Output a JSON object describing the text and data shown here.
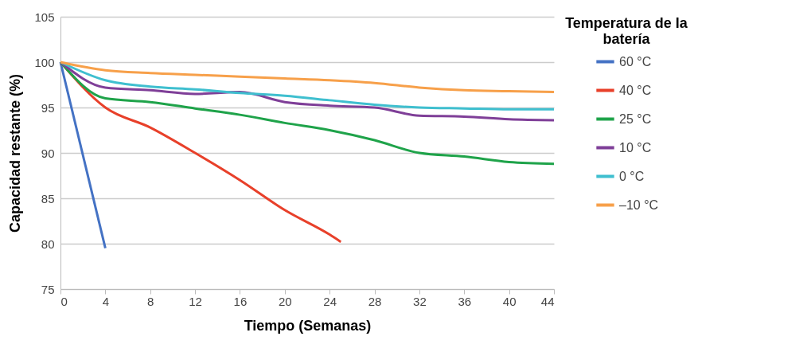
{
  "chart_data": {
    "type": "line",
    "xlabel": "Tiempo (Semanas)",
    "ylabel": "Capacidad restante (%)",
    "legend_title": "Temperatura de la batería",
    "legend": "right",
    "grid": "y",
    "xlim": [
      0,
      44
    ],
    "xticks": [
      0,
      4,
      8,
      12,
      16,
      20,
      24,
      28,
      32,
      36,
      40,
      44
    ],
    "ylim": [
      75,
      105
    ],
    "yticks": [
      75,
      80,
      85,
      90,
      95,
      100,
      105
    ],
    "series": [
      {
        "name": "60 °C",
        "color": "#4472c4",
        "x": [
          0,
          4
        ],
        "values": [
          100,
          79.5
        ]
      },
      {
        "name": "40 °C",
        "color": "#e8402a",
        "x": [
          0,
          4,
          8,
          12,
          16,
          20,
          24,
          25
        ],
        "values": [
          100,
          95,
          92.8,
          90,
          87,
          83.7,
          81,
          80.2
        ]
      },
      {
        "name": "25 °C",
        "color": "#1fa34a",
        "x": [
          0,
          4,
          8,
          12,
          16,
          20,
          24,
          28,
          32,
          36,
          40,
          44
        ],
        "values": [
          100,
          96,
          95.6,
          94.9,
          94.2,
          93.3,
          92.5,
          91.4,
          90,
          89.6,
          89,
          88.8
        ]
      },
      {
        "name": "10 °C",
        "color": "#7f3f98",
        "x": [
          0,
          4,
          8,
          12,
          16,
          20,
          24,
          28,
          32,
          36,
          40,
          44
        ],
        "values": [
          100,
          97.2,
          96.9,
          96.5,
          96.7,
          95.6,
          95.2,
          95,
          94.1,
          94,
          93.7,
          93.6
        ]
      },
      {
        "name": "0 °C",
        "color": "#3fbfcf",
        "x": [
          0,
          4,
          8,
          12,
          16,
          20,
          24,
          28,
          32,
          36,
          40,
          44
        ],
        "values": [
          100,
          98,
          97.3,
          97,
          96.6,
          96.3,
          95.8,
          95.3,
          95,
          94.9,
          94.8,
          94.8
        ]
      },
      {
        "name": "–10 °C",
        "color": "#f7a04a",
        "x": [
          0,
          4,
          8,
          12,
          16,
          20,
          24,
          28,
          32,
          36,
          40,
          44
        ],
        "values": [
          100,
          99.1,
          98.8,
          98.6,
          98.4,
          98.2,
          98,
          97.7,
          97.2,
          96.9,
          96.8,
          96.7
        ]
      }
    ]
  }
}
